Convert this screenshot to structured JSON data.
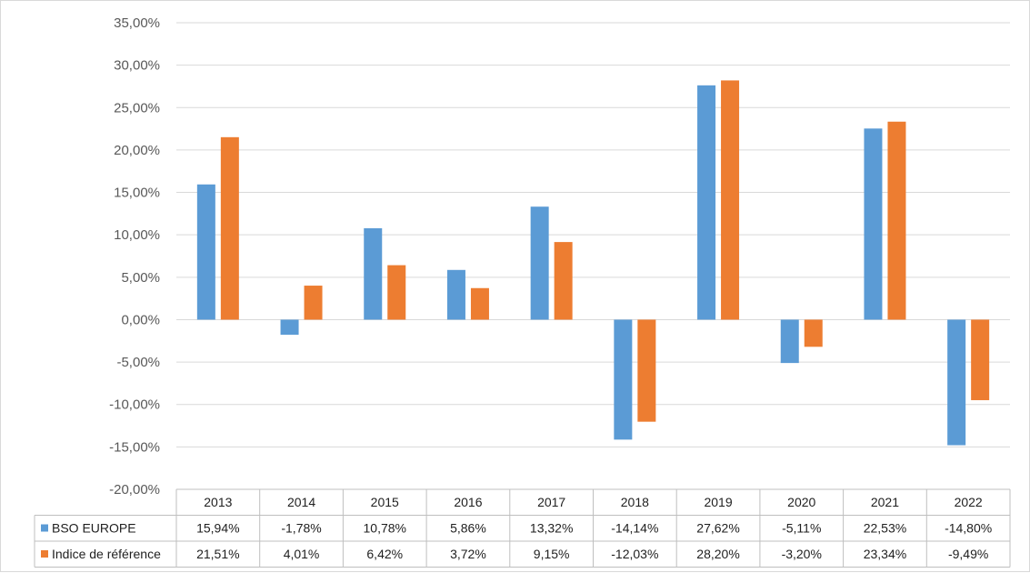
{
  "chart_data": {
    "type": "bar",
    "categories": [
      "2013",
      "2014",
      "2015",
      "2016",
      "2017",
      "2018",
      "2019",
      "2020",
      "2021",
      "2022"
    ],
    "series": [
      {
        "name": "BSO EUROPE",
        "color": "#5b9bd5",
        "values": [
          15.94,
          -1.78,
          10.78,
          5.86,
          13.32,
          -14.14,
          27.62,
          -5.11,
          22.53,
          -14.8
        ],
        "labels": [
          "15,94%",
          "-1,78%",
          "10,78%",
          "5,86%",
          "13,32%",
          "-14,14%",
          "27,62%",
          "-5,11%",
          "22,53%",
          "-14,80%"
        ]
      },
      {
        "name": "Indice de référence",
        "color": "#ed7d31",
        "values": [
          21.51,
          4.01,
          6.42,
          3.72,
          9.15,
          -12.03,
          28.2,
          -3.2,
          23.34,
          -9.49
        ],
        "labels": [
          "21,51%",
          "4,01%",
          "6,42%",
          "3,72%",
          "9,15%",
          "-12,03%",
          "28,20%",
          "-3,20%",
          "23,34%",
          "-9,49%"
        ]
      }
    ],
    "ylim": [
      -20,
      35
    ],
    "ytick_labels": [
      "35,00%",
      "30,00%",
      "25,00%",
      "20,00%",
      "15,00%",
      "10,00%",
      "5,00%",
      "0,00%",
      "-5,00%",
      "-10,00%",
      "-15,00%",
      "-20,00%"
    ],
    "ytick_values": [
      35,
      30,
      25,
      20,
      15,
      10,
      5,
      0,
      -5,
      -10,
      -15,
      -20
    ],
    "grid": true,
    "legend": "data table below chart",
    "title": "",
    "xlabel": "",
    "ylabel": ""
  }
}
